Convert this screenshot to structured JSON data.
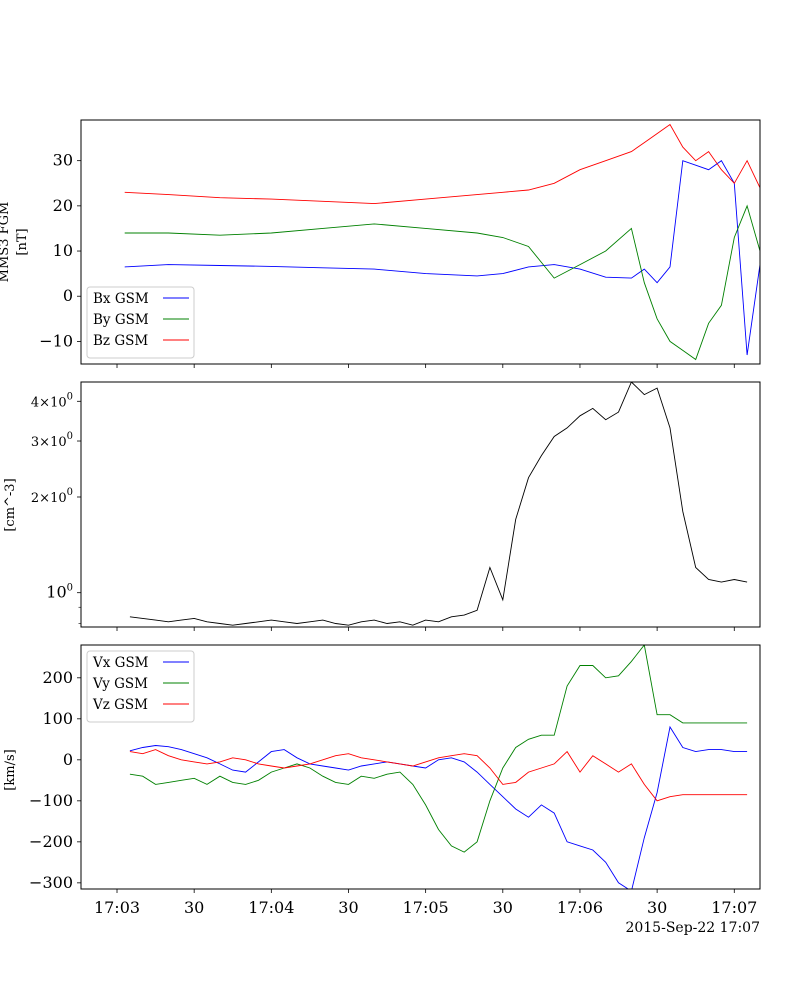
{
  "figure": {
    "timestamp": "2015-Sep-22 17:07",
    "x_tick_labels": [
      "17:03",
      "30",
      "17:04",
      "30",
      "17:05",
      "30",
      "17:06",
      "30",
      "17:07"
    ]
  },
  "chart_data": [
    {
      "type": "line",
      "ylabel_lines": [
        "MMS3 FGM",
        "[nT]"
      ],
      "ylim": [
        -15,
        39
      ],
      "yticks": [
        -10,
        0,
        10,
        20,
        30
      ],
      "ytick_labels": [
        "−10",
        "0",
        "10",
        "20",
        "30"
      ],
      "xlim_seconds": [
        -14,
        250
      ],
      "legend_position": "lower-left",
      "series": [
        {
          "name": "Bx GSM",
          "color": "#0000ff",
          "x": [
            3,
            20,
            40,
            60,
            80,
            100,
            120,
            140,
            150,
            160,
            170,
            180,
            190,
            200,
            205,
            210,
            215,
            220,
            225,
            230,
            235,
            240,
            245,
            250
          ],
          "y": [
            6.5,
            7,
            6.8,
            6.6,
            6.3,
            6,
            5,
            4.5,
            5,
            6.5,
            7,
            6,
            4.2,
            4,
            6,
            3,
            6.5,
            30,
            29,
            28,
            30,
            25,
            -13,
            7
          ]
        },
        {
          "name": "By GSM",
          "color": "#008000",
          "x": [
            3,
            20,
            40,
            60,
            80,
            100,
            120,
            140,
            150,
            160,
            170,
            180,
            190,
            200,
            205,
            210,
            215,
            220,
            225,
            230,
            235,
            240,
            245,
            250
          ],
          "y": [
            14,
            14,
            13.5,
            14,
            15,
            16,
            15,
            14,
            13,
            11,
            4,
            7,
            10,
            15,
            3,
            -5,
            -10,
            -12,
            -14,
            -6,
            -2,
            13,
            20,
            10
          ]
        },
        {
          "name": "Bz GSM",
          "color": "#ff0000",
          "x": [
            3,
            20,
            40,
            60,
            80,
            100,
            120,
            140,
            150,
            160,
            170,
            180,
            190,
            200,
            205,
            210,
            215,
            220,
            225,
            230,
            235,
            240,
            245,
            250
          ],
          "y": [
            23,
            22.5,
            21.8,
            21.5,
            21,
            20.5,
            21.5,
            22.5,
            23,
            23.5,
            25,
            28,
            30,
            32,
            34,
            36,
            38,
            33,
            30,
            32,
            28,
            25,
            30,
            24
          ]
        }
      ]
    },
    {
      "type": "line",
      "ylabel_lines": [
        "[cm^-3]"
      ],
      "yscale": "log",
      "ylim": [
        0.78,
        4.6
      ],
      "ytick_values": [
        1,
        2,
        3,
        4
      ],
      "ytick_labels": [
        "10",
        "2×10",
        "3×10",
        "4×10"
      ],
      "ytick_exponents": [
        "0",
        "0",
        "0",
        "0"
      ],
      "xlim_seconds": [
        -14,
        250
      ],
      "series": [
        {
          "name": "",
          "color": "#000000",
          "x": [
            5,
            10,
            15,
            20,
            25,
            30,
            35,
            40,
            45,
            50,
            55,
            60,
            65,
            70,
            75,
            80,
            85,
            90,
            95,
            100,
            105,
            110,
            115,
            120,
            125,
            130,
            135,
            140,
            145,
            150,
            155,
            160,
            165,
            170,
            175,
            180,
            185,
            190,
            195,
            200,
            205,
            210,
            215,
            220,
            225,
            230,
            235,
            240,
            245
          ],
          "y": [
            0.84,
            0.83,
            0.82,
            0.81,
            0.82,
            0.83,
            0.81,
            0.8,
            0.79,
            0.8,
            0.81,
            0.82,
            0.81,
            0.8,
            0.81,
            0.82,
            0.8,
            0.79,
            0.81,
            0.82,
            0.8,
            0.81,
            0.79,
            0.82,
            0.81,
            0.84,
            0.85,
            0.88,
            1.2,
            0.95,
            1.7,
            2.3,
            2.7,
            3.1,
            3.3,
            3.6,
            3.8,
            3.5,
            3.7,
            4.6,
            4.2,
            4.4,
            3.3,
            1.8,
            1.2,
            1.1,
            1.08,
            1.1,
            1.08
          ]
        }
      ]
    },
    {
      "type": "line",
      "ylabel_lines": [
        "[km/s]"
      ],
      "ylim": [
        -315,
        280
      ],
      "yticks": [
        -300,
        -200,
        -100,
        0,
        100,
        200
      ],
      "ytick_labels": [
        "−300",
        "−200",
        "−100",
        "0",
        "100",
        "200"
      ],
      "xlim_seconds": [
        -14,
        250
      ],
      "legend_position": "upper-left",
      "series": [
        {
          "name": "Vx GSM",
          "color": "#0000ff",
          "x": [
            5,
            10,
            15,
            20,
            25,
            30,
            35,
            40,
            45,
            50,
            55,
            60,
            65,
            70,
            75,
            80,
            85,
            90,
            95,
            100,
            105,
            110,
            115,
            120,
            125,
            130,
            135,
            140,
            145,
            150,
            155,
            160,
            165,
            170,
            175,
            180,
            185,
            190,
            195,
            200,
            205,
            210,
            215,
            220,
            225,
            230,
            235,
            240,
            245
          ],
          "y": [
            22,
            30,
            35,
            32,
            25,
            15,
            5,
            -10,
            -25,
            -30,
            -5,
            20,
            25,
            5,
            -10,
            -15,
            -20,
            -25,
            -15,
            -10,
            -5,
            -10,
            -15,
            -20,
            0,
            5,
            -5,
            -30,
            -60,
            -90,
            -120,
            -140,
            -110,
            -130,
            -200,
            -210,
            -220,
            -250,
            -300,
            -320,
            -190,
            -80,
            80,
            30,
            20,
            25,
            25,
            20,
            20
          ]
        },
        {
          "name": "Vy GSM",
          "color": "#008000",
          "x": [
            5,
            10,
            15,
            20,
            25,
            30,
            35,
            40,
            45,
            50,
            55,
            60,
            65,
            70,
            75,
            80,
            85,
            90,
            95,
            100,
            105,
            110,
            115,
            120,
            125,
            130,
            135,
            140,
            145,
            150,
            155,
            160,
            165,
            170,
            175,
            180,
            185,
            190,
            195,
            200,
            205,
            210,
            215,
            220,
            225,
            230,
            235,
            240,
            245
          ],
          "y": [
            -35,
            -40,
            -60,
            -55,
            -50,
            -45,
            -60,
            -40,
            -55,
            -60,
            -50,
            -30,
            -20,
            -10,
            -20,
            -40,
            -55,
            -60,
            -40,
            -45,
            -35,
            -30,
            -60,
            -110,
            -170,
            -210,
            -225,
            -200,
            -100,
            -20,
            30,
            50,
            60,
            60,
            180,
            230,
            230,
            200,
            205,
            240,
            280,
            110,
            110,
            90,
            90,
            90,
            90,
            90,
            90
          ]
        },
        {
          "name": "Vz GSM",
          "color": "#ff0000",
          "x": [
            5,
            10,
            15,
            20,
            25,
            30,
            35,
            40,
            45,
            50,
            55,
            60,
            65,
            70,
            75,
            80,
            85,
            90,
            95,
            100,
            105,
            110,
            115,
            120,
            125,
            130,
            135,
            140,
            145,
            150,
            155,
            160,
            165,
            170,
            175,
            180,
            185,
            190,
            195,
            200,
            205,
            210,
            215,
            220,
            225,
            230,
            235,
            240,
            245
          ],
          "y": [
            20,
            15,
            25,
            10,
            0,
            -5,
            -10,
            -5,
            5,
            0,
            -10,
            -15,
            -20,
            -15,
            -10,
            0,
            10,
            15,
            5,
            0,
            -5,
            -10,
            -15,
            -5,
            5,
            10,
            15,
            10,
            -20,
            -60,
            -55,
            -30,
            -20,
            -10,
            20,
            -30,
            10,
            -10,
            -30,
            -10,
            -60,
            -100,
            -90,
            -85,
            -85,
            -85,
            -85,
            -85,
            -85
          ]
        }
      ]
    }
  ]
}
